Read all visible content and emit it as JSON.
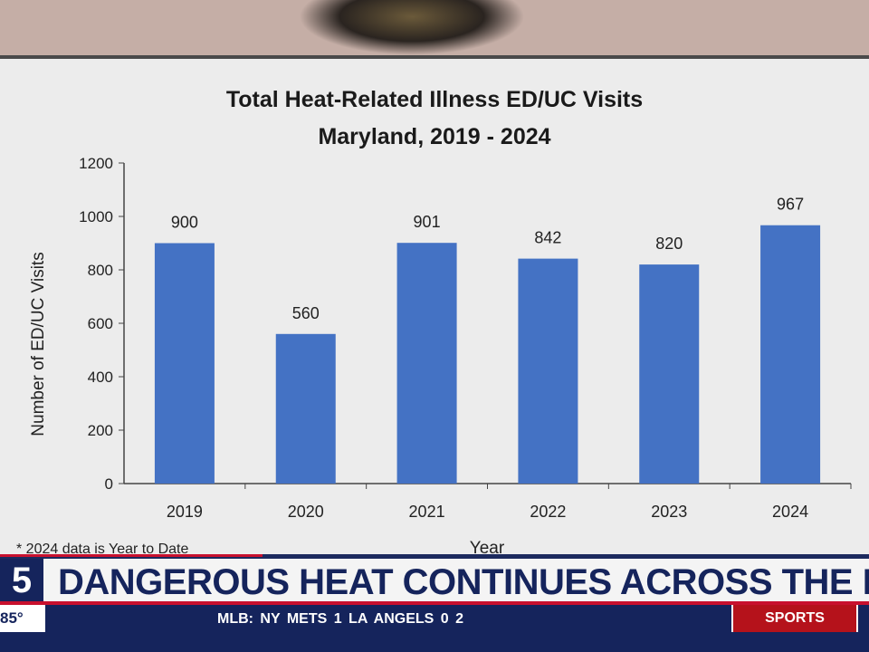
{
  "chart_data": {
    "type": "bar",
    "title": "Total Heat-Related Illness ED/UC Visits",
    "subtitle": "Maryland, 2019 - 2024",
    "categories": [
      "2019",
      "2020",
      "2021",
      "2022",
      "2023",
      "2024"
    ],
    "values": [
      900,
      560,
      901,
      842,
      820,
      967
    ],
    "xlabel": "Year",
    "ylabel": "Number of ED/UC Visits",
    "ylim": [
      0,
      1200
    ],
    "yticks": [
      0,
      200,
      400,
      600,
      800,
      1000,
      1200
    ],
    "grid": false,
    "bar_color": "#4472c4",
    "note": "* 2024 data is Year to Date"
  },
  "broadcast": {
    "channel_logo": "5",
    "headline": "DANGEROUS HEAT CONTINUES ACROSS THE D",
    "temperature": "85°",
    "ticker": "MLB:  NY METS  1  LA ANGELS  0  2",
    "sports_label": "SPORTS",
    "colors": {
      "navy": "#15245c",
      "red": "#c8102e"
    }
  }
}
